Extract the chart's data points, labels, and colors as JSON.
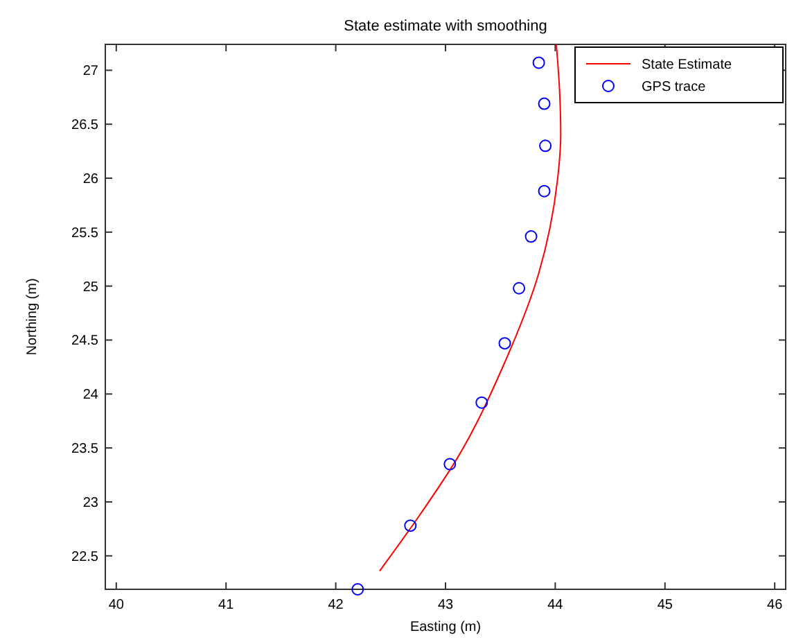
{
  "chart_data": {
    "type": "line",
    "title": "State estimate with smoothing",
    "xlabel": "Easting (m)",
    "ylabel": "Northing (m)",
    "xlim": [
      39.9,
      46.1
    ],
    "ylim": [
      22.19,
      27.24
    ],
    "xticks": [
      40,
      41,
      42,
      43,
      44,
      45,
      46
    ],
    "yticks": [
      22.5,
      23,
      23.5,
      24,
      24.5,
      25,
      25.5,
      26,
      26.5,
      27
    ],
    "grid": false,
    "legend": "top right",
    "series": [
      {
        "name": "State Estimate",
        "type": "line",
        "color": "#ff0000",
        "marker": "none",
        "line_style": "solid",
        "x": [
          42.4,
          42.78,
          43.11,
          43.53,
          43.85,
          44.02,
          44.05,
          44.04,
          44.01
        ],
        "values": [
          22.36,
          22.9,
          23.41,
          24.27,
          25.12,
          25.98,
          26.41,
          26.8,
          27.24
        ]
      },
      {
        "name": "GPS trace",
        "type": "scatter",
        "color": "#0000ff",
        "marker": "circle",
        "x": [
          42.2,
          42.68,
          43.04,
          43.33,
          43.54,
          43.67,
          43.78,
          43.9,
          43.91,
          43.9,
          43.85
        ],
        "values": [
          22.19,
          22.78,
          23.35,
          23.92,
          24.47,
          24.98,
          25.46,
          25.88,
          26.3,
          26.69,
          27.07
        ]
      }
    ]
  }
}
